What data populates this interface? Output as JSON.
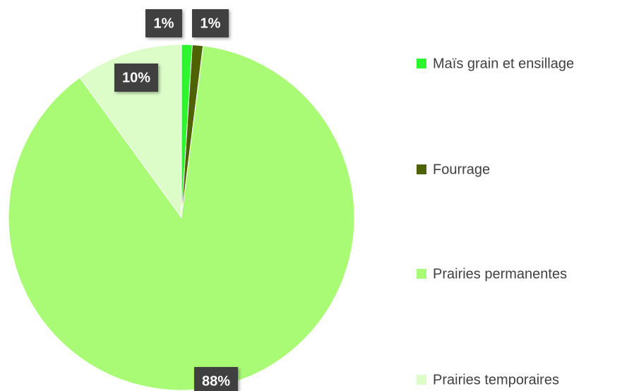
{
  "chart_data": {
    "type": "pie",
    "categories": [
      "Maïs grain et ensillage",
      "Fourrage",
      "Prairies permanentes",
      "Prairies temporaires"
    ],
    "values": [
      1,
      1,
      88,
      10
    ],
    "value_labels": [
      "1%",
      "1%",
      "88%",
      "10%"
    ],
    "colors": [
      "#2ef52e",
      "#4e6300",
      "#a9fb75",
      "#dcfdc8"
    ],
    "legend": "right"
  }
}
